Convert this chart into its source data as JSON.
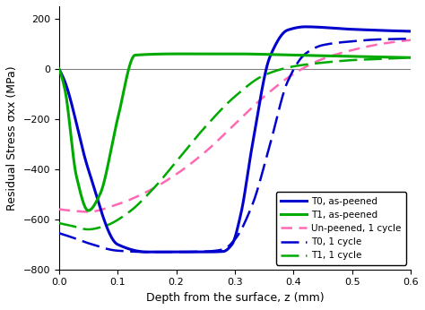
{
  "xlabel": "Depth from the surface, z (mm)",
  "ylabel": "Residual Stress σxx (MPa)",
  "xlim": [
    0,
    0.6
  ],
  "ylim": [
    -800,
    250
  ],
  "xticks": [
    0,
    0.1,
    0.2,
    0.3,
    0.4,
    0.5,
    0.6
  ],
  "yticks": [
    -800,
    -600,
    -400,
    -200,
    0,
    200
  ],
  "legend_entries": [
    "T0, as-peened",
    "T1, as-peened",
    "Un-peened, 1 cycle",
    "T0, 1 cycle",
    "T1, 1 cycle"
  ],
  "colors": {
    "T0_as": "#0000cc",
    "T1_as": "#00aa00",
    "unpeened": "#ff69b4",
    "T0_1cyc": "#0000cc",
    "T1_1cyc": "#00aa00"
  },
  "background": "#ffffff",
  "T0_as_z": [
    0.0,
    0.01,
    0.05,
    0.1,
    0.15,
    0.2,
    0.25,
    0.28,
    0.295,
    0.31,
    0.33,
    0.36,
    0.39,
    0.42,
    0.5,
    0.6
  ],
  "T0_as_y": [
    0,
    -50,
    -400,
    -700,
    -730,
    -730,
    -730,
    -728,
    -700,
    -580,
    -300,
    50,
    155,
    168,
    158,
    150
  ],
  "T1_as_z": [
    0.0,
    0.01,
    0.03,
    0.05,
    0.07,
    0.1,
    0.13,
    0.2,
    0.3,
    0.4,
    0.5,
    0.6
  ],
  "T1_as_y": [
    0,
    -80,
    -430,
    -565,
    -500,
    -200,
    55,
    60,
    60,
    55,
    50,
    45
  ],
  "unpeened_z": [
    0.0,
    0.02,
    0.05,
    0.1,
    0.15,
    0.2,
    0.25,
    0.3,
    0.35,
    0.4,
    0.45,
    0.5,
    0.55,
    0.6
  ],
  "unpeened_y": [
    -560,
    -565,
    -570,
    -540,
    -490,
    -420,
    -330,
    -220,
    -110,
    -20,
    40,
    75,
    100,
    115
  ],
  "T0_1cyc_z": [
    0.0,
    0.02,
    0.05,
    0.1,
    0.15,
    0.2,
    0.25,
    0.28,
    0.3,
    0.33,
    0.36,
    0.39,
    0.42,
    0.45,
    0.5,
    0.55,
    0.6
  ],
  "T0_1cyc_y": [
    -655,
    -670,
    -695,
    -725,
    -730,
    -730,
    -728,
    -720,
    -680,
    -540,
    -300,
    -50,
    60,
    95,
    110,
    118,
    120
  ],
  "T1_1cyc_z": [
    0.0,
    0.02,
    0.05,
    0.08,
    0.12,
    0.16,
    0.2,
    0.25,
    0.3,
    0.35,
    0.4,
    0.45,
    0.5,
    0.55,
    0.6
  ],
  "T1_1cyc_y": [
    -615,
    -625,
    -640,
    -625,
    -570,
    -480,
    -370,
    -230,
    -110,
    -25,
    10,
    25,
    35,
    40,
    45
  ]
}
